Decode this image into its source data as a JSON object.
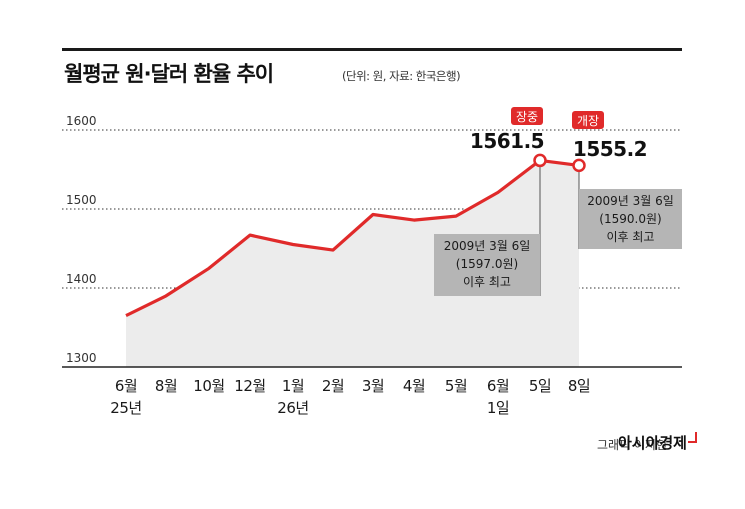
{
  "title": "월평균 원·달러 환율 추이",
  "unit_note": "(단위: 원, 자료: 한국은행)",
  "chart_data": {
    "type": "area",
    "title": "월평균 원·달러 환율 추이",
    "ylim": [
      1300,
      1600
    ],
    "yticks": [
      1300,
      1400,
      1500,
      1600
    ],
    "grid": true,
    "categories": [
      "6월 25년",
      "8월",
      "10월",
      "12월",
      "1월 26년",
      "2월",
      "3월",
      "4월",
      "5월",
      "6월 1일",
      "5일",
      "8일"
    ],
    "tick_labels": [
      [
        "6월",
        "25년"
      ],
      [
        "8월"
      ],
      [
        "10월"
      ],
      [
        "12월"
      ],
      [
        "1월",
        "26년"
      ],
      [
        "2월"
      ],
      [
        "3월"
      ],
      [
        "4월"
      ],
      [
        "5월"
      ],
      [
        "6월",
        "1일"
      ],
      [
        "5일"
      ],
      [
        "8일"
      ]
    ],
    "values": [
      1365,
      1390,
      1425,
      1467,
      1455,
      1448,
      1493,
      1486,
      1491,
      1521,
      1561.5,
      1555.2
    ],
    "data_labels": [
      {
        "index": 10,
        "tag": "장중",
        "value": "1561.5"
      },
      {
        "index": 11,
        "tag": "개장",
        "value": "1555.2"
      }
    ],
    "annotations": [
      {
        "index": 10,
        "lines": [
          "2009년 3월 6일",
          "(1597.0원)",
          "이후 최고"
        ]
      },
      {
        "index": 11,
        "lines": [
          "2009년 3월 6일",
          "(1590.0원)",
          "이후 최고"
        ]
      }
    ],
    "colors": {
      "line": "#e02a2a",
      "area": "#ececec",
      "annotation_box": "#b5b5b5"
    }
  },
  "credit": "그래픽 이지현",
  "brand": "아시아경제"
}
